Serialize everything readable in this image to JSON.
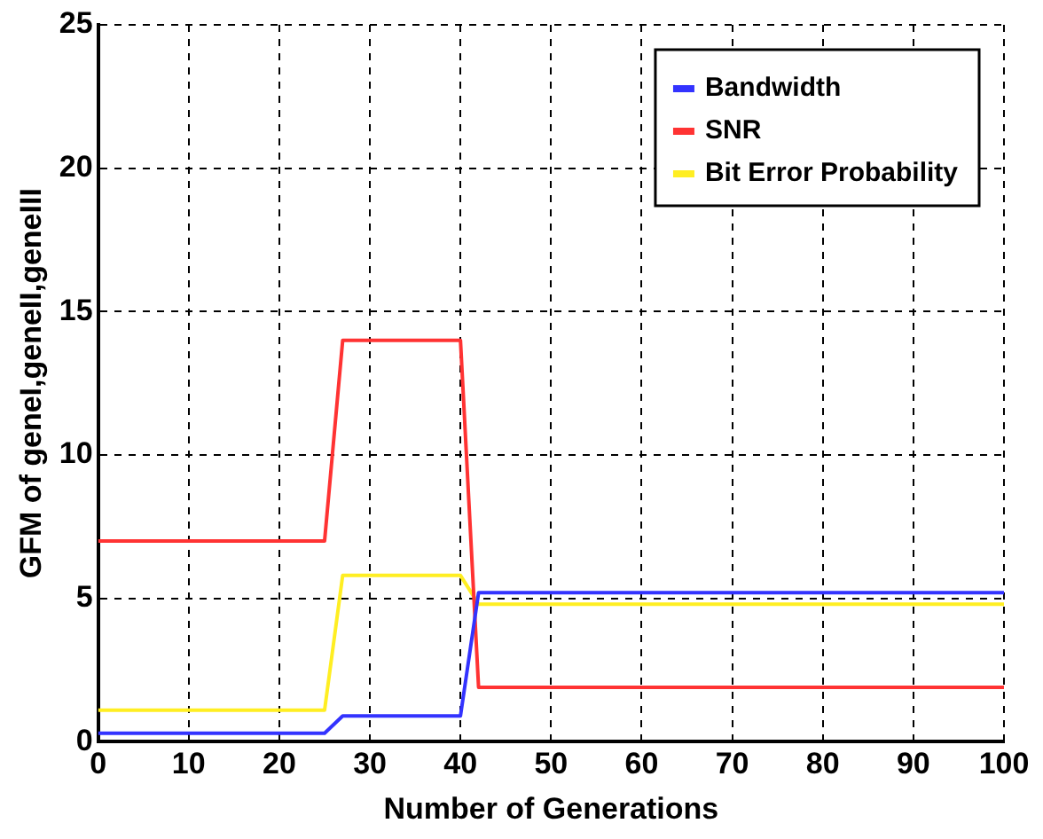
{
  "chart_data": {
    "type": "line",
    "xlabel": "Number of Generations",
    "ylabel": "GFM of geneI,geneII,geneIII",
    "xlim": [
      0,
      100
    ],
    "xticks": [
      0,
      10,
      20,
      30,
      40,
      50,
      60,
      70,
      80,
      90,
      100
    ],
    "ylim": [
      0,
      25
    ],
    "yticks": [
      0,
      5,
      10,
      15,
      20,
      25
    ],
    "grid": true,
    "legend": "top right",
    "marker": "none",
    "line_style": "solid",
    "series": [
      {
        "name": "Bandwidth",
        "color": "#3333ff",
        "x": [
          0,
          25,
          27,
          40,
          42,
          100
        ],
        "values": [
          0.3,
          0.3,
          0.9,
          0.9,
          5.2,
          5.2
        ]
      },
      {
        "name": "SNR",
        "color": "#ff3333",
        "x": [
          0,
          25,
          27,
          40,
          42,
          100
        ],
        "values": [
          7,
          7,
          14,
          14,
          1.9,
          1.9
        ]
      },
      {
        "name": "Bit Error Probability",
        "color": "#ffee22",
        "x": [
          0,
          25,
          27,
          40,
          42,
          100
        ],
        "values": [
          1.1,
          1.1,
          5.8,
          5.8,
          4.8,
          4.8
        ]
      }
    ]
  }
}
